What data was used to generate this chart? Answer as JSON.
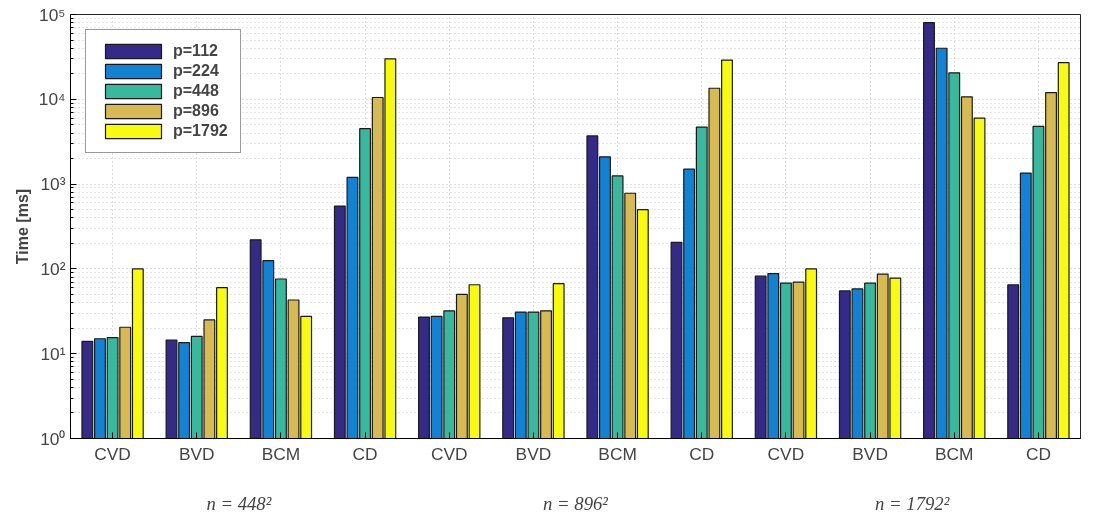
{
  "chart_data": {
    "type": "bar",
    "ylabel": "Time [ms]",
    "log": true,
    "grid": true,
    "legend": "top left",
    "categories": [
      "CVD",
      "BVD",
      "BCM",
      "CD",
      "CVD",
      "BVD",
      "BCM",
      "CD",
      "CVD",
      "BVD",
      "BCM",
      "CD"
    ],
    "series": [
      {
        "name": "p=112",
        "color": "#352a87",
        "values": [
          14,
          14.5,
          220,
          550,
          27,
          26.5,
          3700,
          205,
          82,
          55,
          80000,
          65
        ]
      },
      {
        "name": "p=224",
        "color": "#1283d4",
        "values": [
          15,
          13.5,
          125,
          1200,
          27.5,
          31,
          2100,
          1500,
          88,
          58,
          40000,
          1350
        ]
      },
      {
        "name": "p=448",
        "color": "#38b99e",
        "values": [
          15.5,
          16,
          76,
          4500,
          32,
          31,
          1250,
          4700,
          68,
          68,
          20500,
          4800
        ]
      },
      {
        "name": "p=896",
        "color": "#d7ba52",
        "values": [
          20.5,
          25,
          43,
          10500,
          50,
          32,
          780,
          13500,
          70,
          87,
          10700,
          12000
        ]
      },
      {
        "name": "p=1792",
        "color": "#f9fb0e",
        "values": [
          100,
          60,
          27.5,
          30000,
          65,
          67,
          500,
          29000,
          100,
          78,
          6000,
          27000
        ]
      }
    ],
    "ylim": [
      1,
      100000
    ],
    "yticks": [
      {
        "value": 1,
        "label": "10⁰"
      },
      {
        "value": 10,
        "label": "10¹"
      },
      {
        "value": 100,
        "label": "10²"
      },
      {
        "value": 1000,
        "label": "10³"
      },
      {
        "value": 10000,
        "label": "10⁴"
      },
      {
        "value": 100000,
        "label": "10⁵"
      }
    ],
    "annotations": [
      "n = 448²",
      "n = 896²",
      "n = 1792²"
    ]
  }
}
